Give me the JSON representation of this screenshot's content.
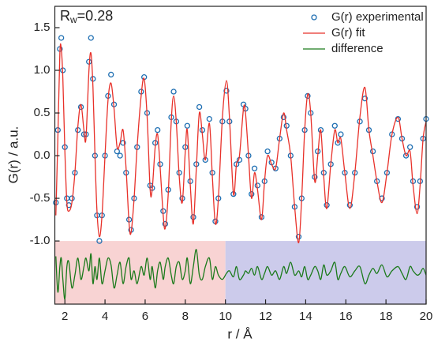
{
  "chart_data": {
    "type": "line",
    "xlabel": "r / Å",
    "ylabel": "G(r) / a.u.",
    "annotation": {
      "main": "R",
      "subscript": "w",
      "suffix": "=0.28"
    },
    "xlim": [
      1.5,
      20
    ],
    "ylim": [
      -1.74,
      1.75
    ],
    "xticks": [
      2,
      4,
      6,
      8,
      10,
      12,
      14,
      16,
      18,
      20
    ],
    "yticks": [
      {
        "value": -1,
        "label": "-1.0"
      },
      {
        "value": -0.5,
        "label": "-0.5"
      },
      {
        "value": 0,
        "label": "0.0"
      },
      {
        "value": 0.5,
        "label": "0.5"
      },
      {
        "value": 1,
        "label": "1.0"
      },
      {
        "value": 1.5,
        "label": "1.5"
      }
    ],
    "legend": "upper right",
    "regions": [
      {
        "x": [
          1.5,
          10
        ],
        "y": [
          -1.74,
          -1
        ],
        "color": "#f8d3d3"
      },
      {
        "x": [
          10,
          20
        ],
        "y": [
          -1.74,
          -1
        ],
        "color": "#cccbeb"
      }
    ],
    "x": [
      1.55,
      1.65,
      1.75,
      1.82,
      1.9,
      2.0,
      2.1,
      2.2,
      2.35,
      2.5,
      2.65,
      2.8,
      2.95,
      3.05,
      3.2,
      3.3,
      3.4,
      3.5,
      3.6,
      3.72,
      3.85,
      4.0,
      4.15,
      4.3,
      4.45,
      4.6,
      4.75,
      4.9,
      5.05,
      5.2,
      5.3,
      5.45,
      5.6,
      5.8,
      5.95,
      6.1,
      6.25,
      6.35,
      6.5,
      6.62,
      6.75,
      6.9,
      7.0,
      7.15,
      7.3,
      7.42,
      7.55,
      7.7,
      7.85,
      8.0,
      8.1,
      8.25,
      8.4,
      8.55,
      8.7,
      8.85,
      9.0,
      9.2,
      9.35,
      9.5,
      9.65,
      9.85,
      10.05,
      10.2,
      10.4,
      10.55,
      10.7,
      10.9,
      11.0,
      11.15,
      11.3,
      11.45,
      11.6,
      11.8,
      11.95,
      12.1,
      12.3,
      12.5,
      12.7,
      12.9,
      13.05,
      13.25,
      13.45,
      13.65,
      13.8,
      13.95,
      14.1,
      14.25,
      14.45,
      14.6,
      14.75,
      14.9,
      15.05,
      15.25,
      15.45,
      15.6,
      15.75,
      15.95,
      16.2,
      16.45,
      16.7,
      16.95,
      17.15,
      17.35,
      17.55,
      17.8,
      18.05,
      18.3,
      18.6,
      18.8,
      19.0,
      19.2,
      19.35,
      19.55,
      19.7,
      19.85,
      20.0
    ],
    "series": [
      {
        "name": "G(r) experimental",
        "color": "#1f6fb2",
        "marker": "circle",
        "values": [
          -0.55,
          0.3,
          1.25,
          1.38,
          1.0,
          0.1,
          -0.5,
          -0.58,
          -0.5,
          -0.2,
          0.3,
          0.57,
          0.25,
          0.25,
          1.1,
          1.38,
          0.9,
          0.0,
          -0.7,
          -1.0,
          -0.7,
          0.0,
          0.7,
          0.95,
          0.6,
          0.05,
          0.0,
          0.15,
          -0.2,
          -0.75,
          -0.87,
          -0.5,
          0.1,
          0.75,
          0.92,
          0.5,
          -0.35,
          -0.38,
          0.15,
          0.3,
          -0.1,
          -0.65,
          -0.8,
          -0.4,
          0.45,
          0.75,
          0.4,
          -0.2,
          -0.5,
          0.1,
          0.35,
          -0.3,
          -0.72,
          -0.1,
          0.57,
          0.3,
          -0.05,
          0.43,
          -0.2,
          -0.77,
          -0.5,
          0.4,
          0.76,
          0.4,
          -0.45,
          -0.1,
          -0.05,
          0.6,
          0.55,
          0.0,
          -0.45,
          -0.15,
          -0.35,
          -0.72,
          -0.3,
          0.05,
          -0.08,
          -0.15,
          0.2,
          0.45,
          0.35,
          0.0,
          -0.6,
          -0.95,
          -0.5,
          0.3,
          0.7,
          0.5,
          -0.25,
          0.05,
          0.3,
          -0.2,
          -0.58,
          -0.1,
          0.35,
          0.15,
          0.25,
          -0.2,
          -0.58,
          -0.2,
          0.4,
          0.67,
          0.3,
          0.05,
          -0.3,
          -0.5,
          -0.2,
          0.25,
          0.43,
          0.2,
          0.0,
          0.1,
          -0.3,
          -0.6,
          -0.3,
          0.2,
          0.43
        ]
      },
      {
        "name": "G(r) fit",
        "color": "#e8312a",
        "marker": "line",
        "values": [
          -0.7,
          0.2,
          1.2,
          1.25,
          0.9,
          0.05,
          -0.55,
          -0.65,
          -0.55,
          -0.2,
          0.35,
          0.6,
          0.3,
          0.2,
          1.0,
          1.2,
          0.8,
          0.0,
          -0.65,
          -0.95,
          -0.7,
          0.0,
          0.65,
          0.85,
          0.55,
          0.1,
          0.15,
          0.3,
          -0.15,
          -0.8,
          -0.9,
          -0.5,
          0.1,
          0.7,
          0.9,
          0.45,
          -0.4,
          -0.4,
          0.1,
          0.25,
          -0.15,
          -0.7,
          -0.85,
          -0.45,
          0.4,
          0.7,
          0.4,
          -0.25,
          -0.55,
          0.05,
          0.3,
          -0.35,
          -0.8,
          -0.15,
          0.5,
          0.25,
          -0.05,
          0.38,
          -0.25,
          -0.8,
          -0.5,
          0.45,
          0.88,
          0.45,
          -0.45,
          -0.1,
          0.0,
          0.55,
          0.5,
          0.0,
          -0.5,
          -0.2,
          -0.4,
          -0.75,
          -0.3,
          0.0,
          -0.1,
          -0.15,
          0.2,
          0.5,
          0.3,
          0.0,
          -0.6,
          -1.02,
          -0.5,
          0.3,
          0.72,
          0.5,
          -0.3,
          0.0,
          0.3,
          -0.25,
          -0.62,
          -0.1,
          0.3,
          0.15,
          0.2,
          -0.2,
          -0.62,
          -0.2,
          0.45,
          0.8,
          0.3,
          0.0,
          -0.3,
          -0.55,
          -0.2,
          0.25,
          0.45,
          0.2,
          0.0,
          0.05,
          -0.35,
          -0.68,
          -0.35,
          0.2,
          0.4
        ]
      },
      {
        "name": "difference",
        "color": "#1b7a1b",
        "marker": "line",
        "values": [
          -1.18,
          -1.6,
          -1.3,
          -1.2,
          -1.45,
          -1.68,
          -1.3,
          -1.25,
          -1.55,
          -1.4,
          -1.2,
          -1.45,
          -1.3,
          -1.2,
          -1.35,
          -1.15,
          -1.5,
          -1.3,
          -1.45,
          -1.2,
          -1.5,
          -1.35,
          -1.2,
          -1.28,
          -1.55,
          -1.4,
          -1.25,
          -1.5,
          -1.3,
          -1.2,
          -1.45,
          -1.35,
          -1.5,
          -1.3,
          -1.4,
          -1.2,
          -1.45,
          -1.3,
          -1.55,
          -1.35,
          -1.25,
          -1.45,
          -1.3,
          -1.2,
          -1.4,
          -1.5,
          -1.3,
          -1.25,
          -1.45,
          -1.35,
          -1.2,
          -1.5,
          -1.3,
          -1.1,
          -1.4,
          -1.45,
          -1.3,
          -1.2,
          -1.45,
          -1.3,
          -1.4,
          -1.45,
          -1.38,
          -1.35,
          -1.42,
          -1.3,
          -1.45,
          -1.4,
          -1.35,
          -1.38,
          -1.32,
          -1.4,
          -1.3,
          -1.45,
          -1.38,
          -1.3,
          -1.4,
          -1.35,
          -1.45,
          -1.3,
          -1.38,
          -1.25,
          -1.4,
          -1.35,
          -1.42,
          -1.3,
          -1.45,
          -1.4,
          -1.3,
          -1.35,
          -1.45,
          -1.28,
          -1.4,
          -1.35,
          -1.25,
          -1.45,
          -1.38,
          -1.3,
          -1.42,
          -1.35,
          -1.3,
          -1.5,
          -1.4,
          -1.32,
          -1.38,
          -1.28,
          -1.42,
          -1.35,
          -1.3,
          -1.38,
          -1.45,
          -1.3,
          -1.35,
          -1.4,
          -1.38,
          -1.32,
          -1.4
        ]
      }
    ]
  }
}
